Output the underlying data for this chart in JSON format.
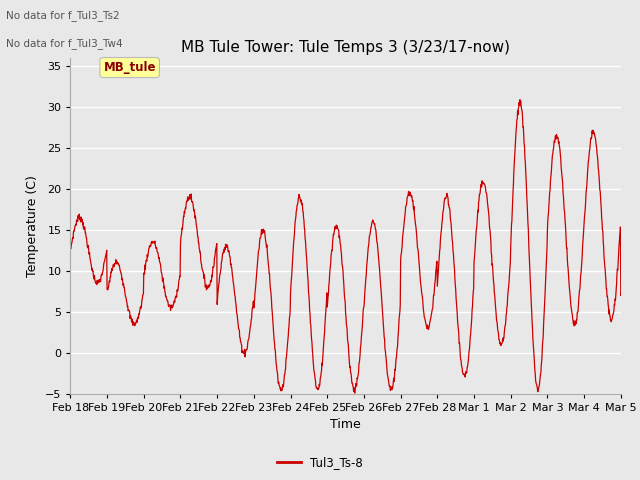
{
  "title": "MB Tule Tower: Tule Temps 3 (3/23/17-now)",
  "xlabel": "Time",
  "ylabel": "Temperature (C)",
  "no_data_text": [
    "No data for f_Tul3_Ts2",
    "No data for f_Tul3_Tw4"
  ],
  "legend_label": "Tul3_Ts-8",
  "mb_tule_label": "MB_tule",
  "line_color": "#cc0000",
  "ylim": [
    -5,
    36
  ],
  "yticks": [
    -5,
    0,
    5,
    10,
    15,
    20,
    25,
    30,
    35
  ],
  "bg_color": "#e8e8e8",
  "grid_color": "#ffffff",
  "title_fontsize": 11,
  "axis_fontsize": 9,
  "tick_fontsize": 8
}
